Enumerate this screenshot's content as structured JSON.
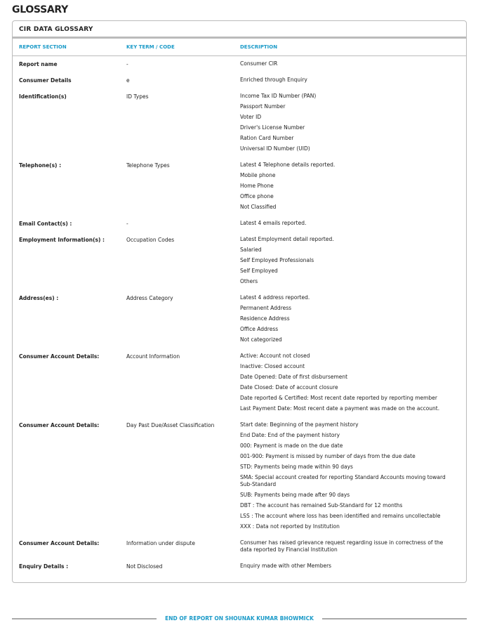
{
  "page_title": "GLOSSARY",
  "card_title": "CIR DATA GLOSSARY",
  "headers": [
    "REPORT SECTION",
    "KEY TERM / CODE",
    "DESCRIPTION"
  ],
  "rows": [
    {
      "section": "Report name",
      "term": "-",
      "desc": [
        "Consumer CIR"
      ]
    },
    {
      "section": "Consumer Details",
      "term": "e",
      "desc": [
        "Enriched through Enquiry"
      ]
    },
    {
      "section": "Identification(s)",
      "term": "ID Types",
      "desc": [
        "Income Tax ID Number (PAN)",
        "Passport Number",
        "Voter ID",
        "Driver's License Number",
        "Ration Card Number",
        "Universal ID Number (UID)"
      ]
    },
    {
      "section": "Telephone(s) :",
      "term": "Telephone Types",
      "desc": [
        "Latest 4 Telephone details reported.",
        "Mobile phone",
        "Home Phone",
        "Office phone",
        "Not Classified"
      ]
    },
    {
      "section": "Email Contact(s) :",
      "term": "-",
      "desc": [
        "Latest 4 emails reported."
      ]
    },
    {
      "section": "Employment Information(s) :",
      "term": "Occupation Codes",
      "desc": [
        "Latest Employment detail reported.",
        "Salaried",
        "Self Employed Professionals",
        "Self Employed",
        "Others"
      ]
    },
    {
      "section": "Address(es) :",
      "term": "Address Category",
      "desc": [
        "Latest 4 address reported.",
        "Permanent Address",
        "Residence Address",
        "Office Address",
        "Not categorized"
      ]
    },
    {
      "section": "Consumer Account Details:",
      "term": "Account Information",
      "desc": [
        "Active: Account not closed",
        "Inactive: Closed account",
        "Date Opened: Date of first disbursement",
        "Date Closed: Date of account closure",
        "Date reported & Certified: Most recent date reported by reporting member",
        "Last Payment Date: Most recent date a payment was made on the account."
      ]
    },
    {
      "section": "Consumer Account Details:",
      "term": "Day Past Due/Asset Classification",
      "desc": [
        "Start date: Beginning of the payment history",
        "End Date: End of the payment history",
        "000: Payment is made on the due date",
        "001-900: Payment is missed by number of days from the due date",
        "STD: Payments being made within 90 days",
        "SMA: Special account created for reporting Standard Accounts moving toward Sub-Standard",
        "SUB: Payments being made after 90 days",
        "DBT : The account has remained Sub-Standard for 12 months",
        "LSS : The account where loss has been identified and remains uncollectable",
        "XXX : Data not reported by Institution"
      ]
    },
    {
      "section": "Consumer Account Details:",
      "term": "Information under dispute",
      "desc": [
        "Consumer has raised grievance request regarding issue in correctness of the data reported by Financial Institution"
      ]
    },
    {
      "section": "Enquiry Details :",
      "term": "Not Disclosed",
      "desc": [
        "Enquiry made with other Members"
      ]
    }
  ],
  "footer": "END OF REPORT ON SHOUNAK KUMAR BHOWMICK",
  "colors": {
    "accent": "#1a9ac8",
    "border": "#bbbbbb"
  }
}
